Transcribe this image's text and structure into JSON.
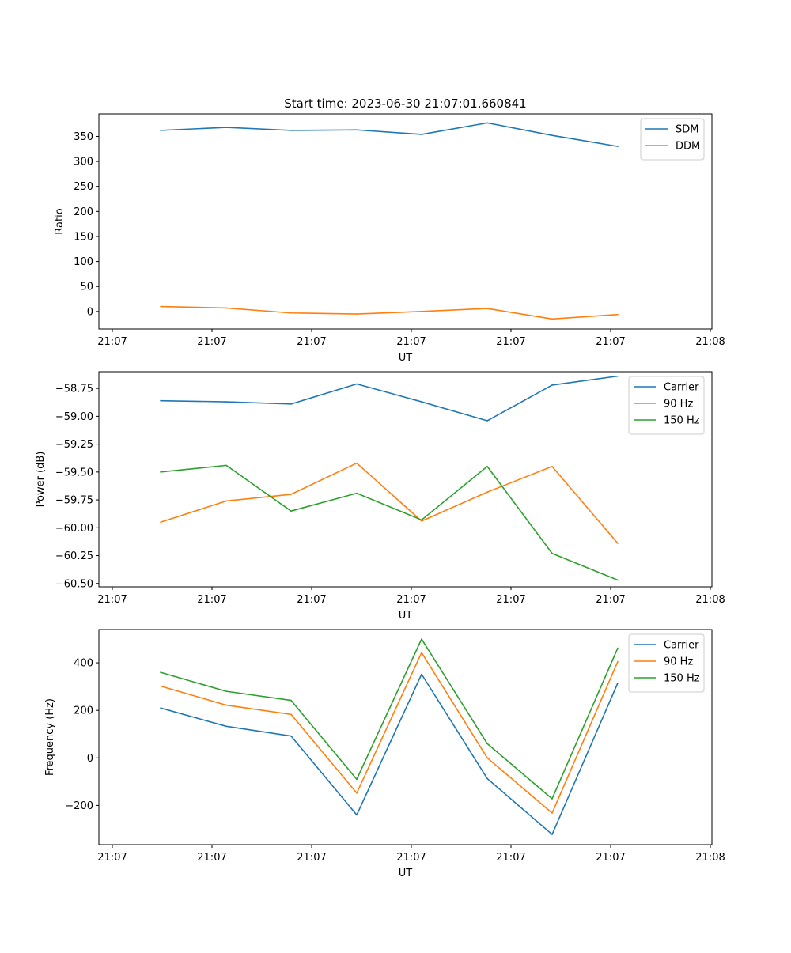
{
  "chart_data": [
    {
      "type": "line",
      "title": "Start time: 2023-06-30 21:07:01.660841",
      "xlabel": "UT",
      "ylabel": "Ratio",
      "x_tick_labels": [
        "21:07",
        "21:07",
        "21:07",
        "21:07",
        "21:07",
        "21:07",
        "21:08"
      ],
      "ylim": [
        -35,
        395
      ],
      "y_ticks": [
        0,
        50,
        100,
        150,
        200,
        250,
        300,
        350
      ],
      "y_tick_labels": [
        "0",
        "50",
        "100",
        "150",
        "200",
        "250",
        "300",
        "350"
      ],
      "legend": "top-right",
      "grid": false,
      "series": [
        {
          "name": "SDM",
          "color": "#1f77b4",
          "values": [
            362,
            368,
            362,
            363,
            354,
            377,
            352,
            330
          ]
        },
        {
          "name": "DDM",
          "color": "#ff7f0e",
          "values": [
            10,
            7,
            -3,
            -5,
            0,
            6,
            -15,
            -6
          ]
        }
      ]
    },
    {
      "type": "line",
      "title": "",
      "xlabel": "UT",
      "ylabel": "Power (dB)",
      "x_tick_labels": [
        "21:07",
        "21:07",
        "21:07",
        "21:07",
        "21:07",
        "21:07",
        "21:08"
      ],
      "ylim": [
        -60.53,
        -58.6
      ],
      "y_ticks": [
        -60.5,
        -60.25,
        -60.0,
        -59.75,
        -59.5,
        -59.25,
        -59.0,
        -58.75
      ],
      "y_tick_labels": [
        "−60.50",
        "−60.25",
        "−60.00",
        "−59.75",
        "−59.50",
        "−59.25",
        "−59.00",
        "−58.75"
      ],
      "legend": "top-right",
      "grid": false,
      "series": [
        {
          "name": "Carrier",
          "color": "#1f77b4",
          "values": [
            -58.86,
            -58.87,
            -58.89,
            -58.71,
            -58.87,
            -59.04,
            -58.72,
            -58.64
          ]
        },
        {
          "name": "90 Hz",
          "color": "#ff7f0e",
          "values": [
            -59.95,
            -59.76,
            -59.7,
            -59.42,
            -59.94,
            -59.68,
            -59.45,
            -60.14
          ]
        },
        {
          "name": "150 Hz",
          "color": "#2ca02c",
          "values": [
            -59.5,
            -59.44,
            -59.85,
            -59.69,
            -59.93,
            -59.45,
            -60.23,
            -60.47
          ]
        }
      ]
    },
    {
      "type": "line",
      "title": "",
      "xlabel": "UT",
      "ylabel": "Frequency (Hz)",
      "x_tick_labels": [
        "21:07",
        "21:07",
        "21:07",
        "21:07",
        "21:07",
        "21:07",
        "21:08"
      ],
      "ylim": [
        -365,
        540
      ],
      "y_ticks": [
        -200,
        0,
        200,
        400
      ],
      "y_tick_labels": [
        "−200",
        "0",
        "200",
        "400"
      ],
      "legend": "top-right",
      "grid": false,
      "series": [
        {
          "name": "Carrier",
          "color": "#1f77b4",
          "values": [
            210,
            133,
            92,
            -240,
            352,
            -87,
            -322,
            315
          ]
        },
        {
          "name": "90 Hz",
          "color": "#ff7f0e",
          "values": [
            302,
            222,
            183,
            -148,
            443,
            0,
            -232,
            405
          ]
        },
        {
          "name": "150 Hz",
          "color": "#2ca02c",
          "values": [
            360,
            280,
            242,
            -90,
            500,
            60,
            -172,
            462
          ]
        }
      ]
    }
  ]
}
